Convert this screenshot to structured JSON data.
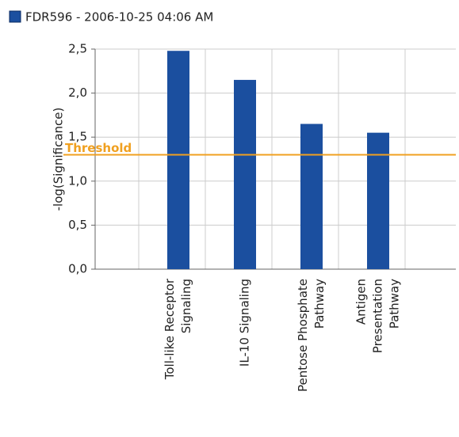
{
  "chart_data": {
    "type": "bar",
    "categories": [
      "Toll-like Receptor\nSignaling",
      "IL-10 Signaling",
      "Pentose Phosphate\nPathway",
      "Antigen\nPresentation\nPathway"
    ],
    "series": [
      {
        "name": "FDR596 - 2006-10-25 04:06 AM",
        "color": "#1b4f9f",
        "values": [
          2.48,
          2.15,
          1.65,
          1.55
        ]
      }
    ],
    "y_label": "-log(Significance)",
    "ylim": [
      0,
      2.5
    ],
    "yticks": [
      {
        "value": 0,
        "label": "0,0"
      },
      {
        "value": 0.5,
        "label": "0,5"
      },
      {
        "value": 1,
        "label": "1,0"
      },
      {
        "value": 1.5,
        "label": "1,5"
      },
      {
        "value": 2,
        "label": "2,0"
      },
      {
        "value": 2.5,
        "label": "2,5"
      }
    ],
    "threshold": {
      "label": "Threshold",
      "value": 1.3,
      "color": "#f0a020"
    },
    "grid": true
  }
}
